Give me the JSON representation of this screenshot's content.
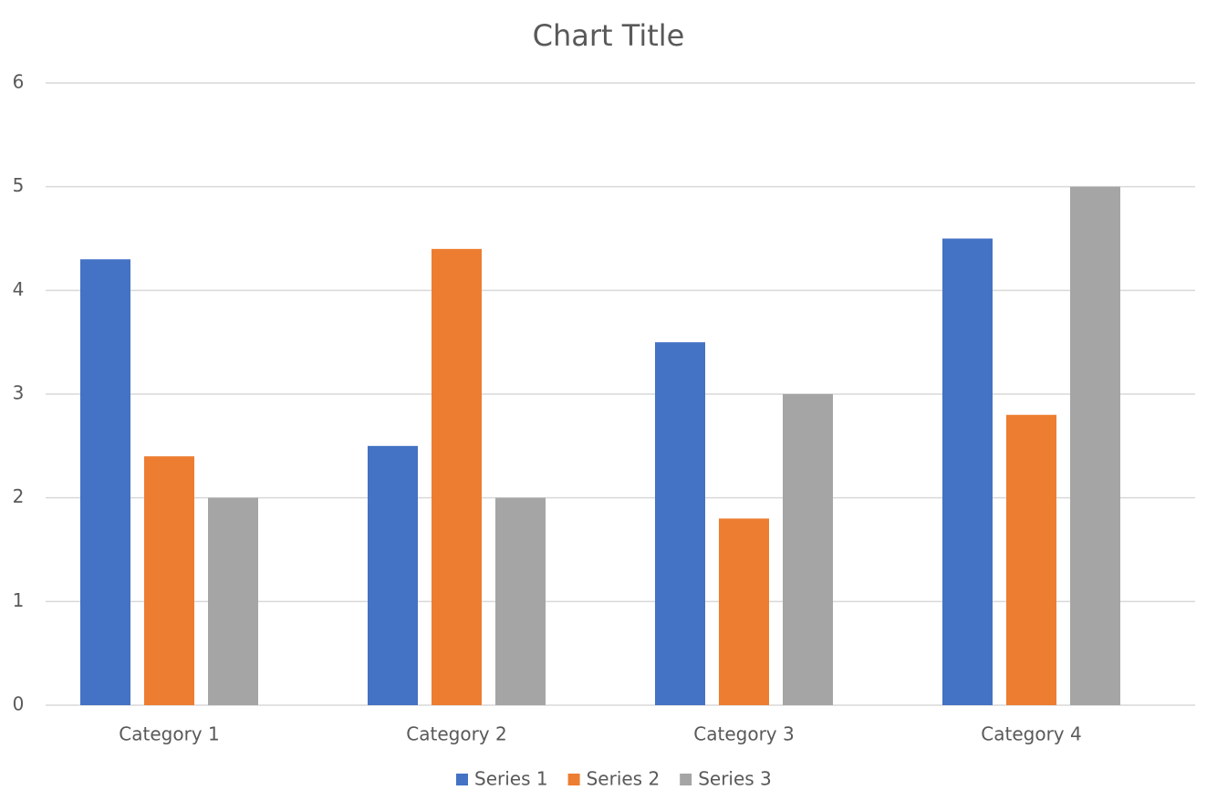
{
  "chart_data": {
    "type": "bar",
    "title": "Chart Title",
    "categories": [
      "Category 1",
      "Category 2",
      "Category 3",
      "Category 4"
    ],
    "series": [
      {
        "name": "Series 1",
        "color": "#4472c4",
        "values": [
          4.3,
          2.5,
          3.5,
          4.5
        ]
      },
      {
        "name": "Series 2",
        "color": "#ed7d31",
        "values": [
          2.4,
          4.4,
          1.8,
          2.8
        ]
      },
      {
        "name": "Series 3",
        "color": "#a5a5a5",
        "values": [
          2,
          2,
          3,
          5
        ]
      }
    ],
    "ylim": [
      0,
      6
    ],
    "yticks": [
      0,
      1,
      2,
      3,
      4,
      5,
      6
    ],
    "grid": true,
    "legend": "bottom"
  }
}
